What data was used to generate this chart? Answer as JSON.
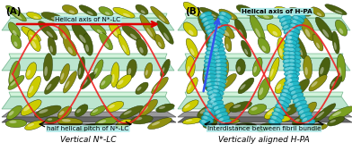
{
  "fig_width": 3.92,
  "fig_height": 1.69,
  "dpi": 100,
  "bg_color": "#ffffff",
  "panel_A": {
    "label": "(A)",
    "title": "Vertical N*-LC",
    "helical_axis_label": "Helical axis of N*-LC",
    "pitch_label": "half helical pitch of N*-LC",
    "slab_color": "#90d4b0",
    "slab_edge": "#449966",
    "slab_top_color": "#a8e4c0",
    "base_color": "#999999",
    "base_dark": "#666666",
    "helix_color": "#ee2222",
    "arrow_color": "#dd0000",
    "label_bg": "#aae8e8"
  },
  "panel_B": {
    "label": "(B)",
    "title": "Vertically aligned H-PA",
    "helical_axis_label": "Helical axis of H-PA",
    "interdist_label": "Interdistance between fibril bundle",
    "slab_color": "#90d4b0",
    "slab_edge": "#449966",
    "slab_top_color": "#a8e4c0",
    "base_color": "#999999",
    "base_dark": "#666666",
    "helix_color": "#ee2222",
    "tube_color": "#22bbcc",
    "tube_dark": "#118899",
    "arrow_color": "#3355ee",
    "label_bg": "#aae8e8"
  },
  "ell_colors": [
    "#7aa020",
    "#cccc00",
    "#556612",
    "#909010",
    "#4a6010"
  ],
  "font_size_label": 7.5,
  "font_size_title": 6.5,
  "font_size_annot": 5.2
}
